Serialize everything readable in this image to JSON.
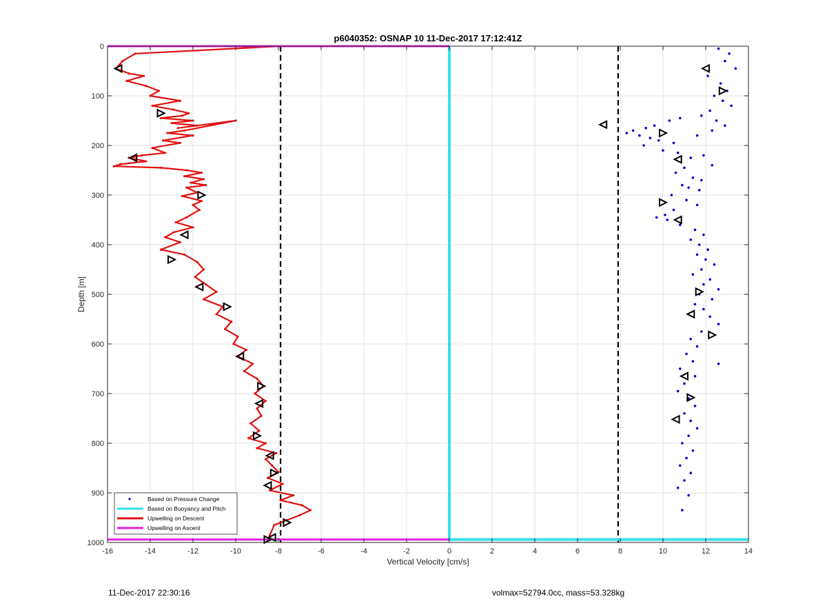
{
  "chart_data": {
    "type": "scatter",
    "title": "p6040352: OSNAP 10 11-Dec-2017 17:12:41Z",
    "xlabel": "Vertical Velocity [cm/s]",
    "ylabel": "Depth [m]",
    "xlim": [
      -16,
      14
    ],
    "ylim": [
      0,
      1000
    ],
    "y_reversed": true,
    "grid": true,
    "legend_position": "bottom-left",
    "xticks": [
      -16,
      -14,
      -12,
      -10,
      -8,
      -6,
      -4,
      -2,
      0,
      2,
      4,
      6,
      8,
      10,
      12,
      14
    ],
    "yticks": [
      0,
      100,
      200,
      300,
      400,
      500,
      600,
      700,
      800,
      900,
      1000
    ],
    "vlines": [
      {
        "x": -7.9,
        "style": "dashed",
        "color": "#000000"
      },
      {
        "x": 7.9,
        "style": "dashed",
        "color": "#000000"
      }
    ],
    "series": [
      {
        "name": "Based on Pressure Change",
        "kind": "points",
        "color": "#0000cc",
        "x": [
          12.6,
          13.1,
          12.9,
          13.4,
          12.1,
          12.7,
          13.0,
          12.4,
          12.8,
          13.2,
          12.2,
          11.8,
          12.5,
          12.9,
          12.3,
          11.6,
          10.8,
          10.3,
          9.6,
          9.2,
          8.6,
          8.9,
          9.8,
          10.5,
          9.4,
          8.3,
          9.1,
          10.0,
          10.7,
          11.3,
          11.9,
          12.3,
          11.0,
          10.6,
          11.4,
          11.8,
          10.9,
          11.2,
          11.7,
          10.4,
          11.1,
          11.6,
          10.5,
          10.1,
          9.7,
          10.2,
          10.8,
          11.5,
          11.9,
          11.3,
          11.7,
          12.1,
          11.6,
          12.0,
          12.4,
          11.8,
          11.4,
          12.2,
          11.9,
          12.6,
          11.7,
          12.3,
          11.5,
          11.9,
          12.2,
          12.6,
          11.8,
          11.3,
          11.6,
          11.1,
          11.4,
          10.8,
          11.5,
          12.6,
          11.0,
          10.7,
          11.2,
          11.5,
          11.0,
          11.3,
          11.6,
          11.2,
          10.9,
          11.4,
          11.1,
          10.8,
          11.3,
          11.0,
          10.7,
          11.2,
          10.9
        ],
        "y": [
          5,
          15,
          30,
          45,
          60,
          75,
          90,
          100,
          110,
          120,
          130,
          140,
          150,
          160,
          170,
          180,
          145,
          150,
          160,
          165,
          170,
          180,
          190,
          195,
          185,
          175,
          200,
          210,
          215,
          225,
          220,
          240,
          245,
          255,
          265,
          270,
          280,
          285,
          290,
          300,
          310,
          320,
          330,
          340,
          345,
          350,
          360,
          370,
          380,
          390,
          400,
          410,
          420,
          430,
          440,
          450,
          460,
          470,
          480,
          490,
          500,
          510,
          520,
          530,
          545,
          560,
          575,
          590,
          605,
          620,
          635,
          650,
          665,
          640,
          680,
          695,
          710,
          725,
          740,
          755,
          770,
          785,
          800,
          815,
          830,
          845,
          860,
          875,
          890,
          905,
          935
        ]
      },
      {
        "name": "Based on Buoyancy and Pitch",
        "kind": "line",
        "color": "#33e0e8",
        "x": [
          0,
          0,
          14
        ],
        "y": [
          0,
          994,
          994
        ]
      },
      {
        "name": "Upwelling on Descent",
        "kind": "line",
        "color": "#e01010",
        "x": [
          -7.9,
          -14.7,
          -15.3,
          -15.6,
          -15.0,
          -14.3,
          -15.1,
          -14.2,
          -13.6,
          -14.0,
          -12.6,
          -13.9,
          -12.9,
          -12.2,
          -12.5,
          -13.5,
          -12.0,
          -13.0,
          -11.8,
          -12.7,
          -10.0,
          -12.4,
          -13.2,
          -12.0,
          -13.4,
          -12.6,
          -13.9,
          -13.3,
          -14.4,
          -15.0,
          -14.2,
          -15.4,
          -15.7,
          -13.5,
          -12.3,
          -11.6,
          -12.4,
          -11.5,
          -12.1,
          -11.4,
          -12.3,
          -11.8,
          -12.5,
          -11.6,
          -12.0,
          -11.7,
          -12.3,
          -12.8,
          -12.0,
          -12.9,
          -13.3,
          -12.6,
          -13.5,
          -12.4,
          -11.8,
          -11.5,
          -11.9,
          -11.4,
          -10.9,
          -11.5,
          -10.6,
          -10.9,
          -10.2,
          -10.5,
          -9.9,
          -10.1,
          -9.5,
          -9.9,
          -9.2,
          -9.6,
          -9.0,
          -8.7,
          -9.1,
          -8.6,
          -9.0,
          -8.8,
          -9.3,
          -8.9,
          -9.4,
          -8.6,
          -9.0,
          -8.1,
          -8.6,
          -8.3,
          -8.0,
          -8.5,
          -7.8,
          -8.4,
          -7.3,
          -7.9,
          -6.9,
          -6.5,
          -7.0,
          -7.6,
          -8.2,
          -8.4,
          -8.5
        ],
        "y": [
          0,
          15,
          30,
          45,
          55,
          60,
          70,
          80,
          90,
          100,
          110,
          120,
          128,
          135,
          140,
          145,
          150,
          155,
          160,
          165,
          150,
          170,
          175,
          180,
          190,
          195,
          205,
          215,
          220,
          225,
          232,
          238,
          242,
          245,
          250,
          255,
          262,
          268,
          275,
          280,
          285,
          295,
          302,
          312,
          320,
          330,
          345,
          355,
          365,
          375,
          385,
          395,
          410,
          420,
          435,
          450,
          465,
          480,
          495,
          510,
          525,
          540,
          555,
          570,
          585,
          600,
          612,
          625,
          640,
          655,
          670,
          685,
          700,
          715,
          730,
          745,
          760,
          775,
          790,
          800,
          810,
          820,
          832,
          845,
          858,
          870,
          882,
          895,
          905,
          915,
          925,
          935,
          945,
          955,
          965,
          985,
          994
        ]
      },
      {
        "name": "Upwelling on Ascent",
        "kind": "line",
        "color": "#e020e0",
        "x": [
          0,
          -16
        ],
        "y": [
          0,
          0
        ],
        "x2": [
          0,
          -16
        ],
        "y2": [
          994,
          994
        ]
      }
    ],
    "markers_descent": {
      "x": [
        -15.5,
        -13.5,
        -14.8,
        -11.6,
        -12.4,
        -13.0,
        -11.7,
        -10.4,
        -9.8,
        -8.8,
        -8.9,
        -9.0,
        -8.4,
        -8.2,
        -8.5,
        -7.6,
        -8.3,
        -8.5
      ],
      "y": [
        45,
        135,
        225,
        300,
        380,
        430,
        485,
        525,
        625,
        685,
        720,
        785,
        825,
        860,
        885,
        960,
        990,
        994
      ],
      "color": "#000000"
    },
    "markers_ascent": {
      "x": [
        12.0,
        12.8,
        7.2,
        10.0,
        10.7,
        10.0,
        10.7,
        11.7,
        11.3,
        12.3,
        11.0,
        11.3,
        10.6
      ],
      "y": [
        45,
        90,
        158,
        175,
        228,
        315,
        350,
        495,
        540,
        582,
        665,
        708,
        752
      ],
      "color": "#000000"
    }
  },
  "footer": {
    "left": "11-Dec-2017 22:30:16",
    "right": "volmax=52794.0cc, mass=53.328kg"
  }
}
